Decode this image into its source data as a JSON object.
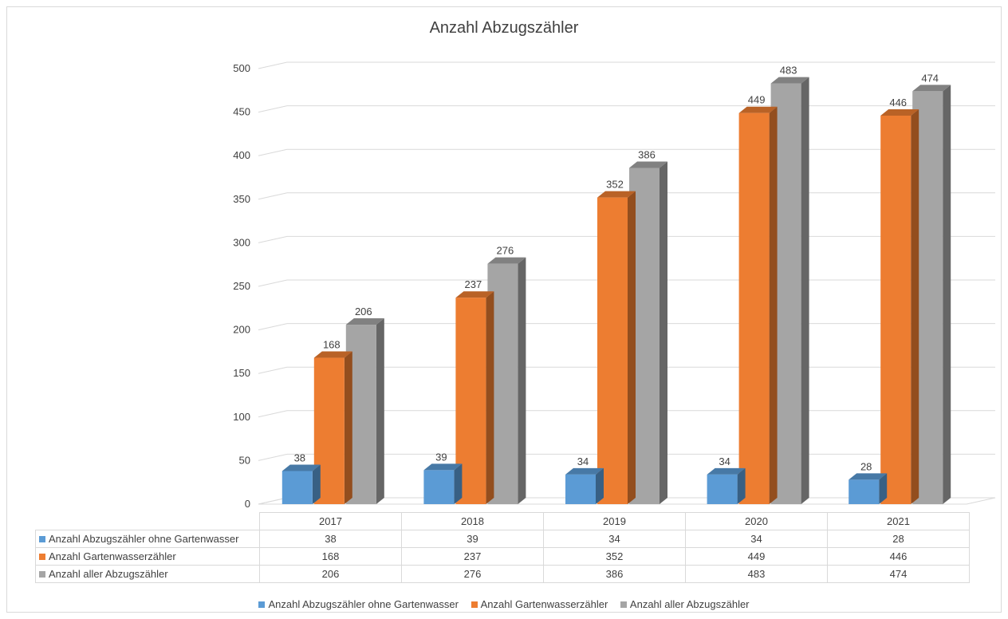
{
  "chart_data": {
    "type": "bar",
    "title": "Anzahl Abzugszähler",
    "categories": [
      "2017",
      "2018",
      "2019",
      "2020",
      "2021"
    ],
    "series": [
      {
        "name": "Anzahl Abzugszähler ohne Gartenwasser",
        "color": "#5b9bd5",
        "values": [
          38,
          39,
          34,
          34,
          28
        ]
      },
      {
        "name": "Anzahl Gartenwasserzähler",
        "color": "#ed7d31",
        "values": [
          168,
          237,
          352,
          449,
          446
        ]
      },
      {
        "name": "Anzahl aller Abzugszähler",
        "color": "#a5a5a5",
        "values": [
          206,
          276,
          386,
          483,
          474
        ]
      }
    ],
    "ylim": [
      0,
      500
    ],
    "yticks": [
      "0",
      "50",
      "100",
      "150",
      "200",
      "250",
      "300",
      "350",
      "400",
      "450",
      "500"
    ],
    "grid": true,
    "style": "3d-clustered-column",
    "legend_position": "bottom",
    "data_table": true
  }
}
